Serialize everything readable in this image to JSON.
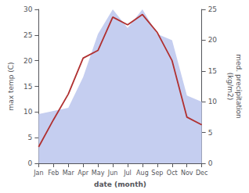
{
  "chart_data": {
    "type": "line",
    "categories": [
      "Jan",
      "Feb",
      "Mar",
      "Apr",
      "May",
      "Jun",
      "Jul",
      "Aug",
      "Sep",
      "Oct",
      "Nov",
      "Dec"
    ],
    "xlabel": "date (month)",
    "ylabel": "max temp (C)",
    "y2label": "med. precipitation\n(kg/m2)",
    "ylim": [
      0,
      30
    ],
    "yticks": [
      0,
      5,
      10,
      15,
      20,
      25,
      30
    ],
    "y2lim": [
      0,
      25
    ],
    "y2ticks": [
      0,
      5,
      10,
      15,
      20,
      25
    ],
    "grid": false,
    "series": [
      {
        "type": "area",
        "color": "#c5cef0",
        "axis": "y2",
        "values": [
          8.0,
          8.5,
          9.0,
          14.0,
          21.0,
          25.0,
          22.0,
          25.0,
          21.0,
          20.0,
          11.0,
          10.0
        ]
      },
      {
        "type": "line",
        "color": "#b03030",
        "values": [
          3.2,
          8.5,
          13.5,
          20.5,
          22.0,
          28.5,
          27.0,
          29.0,
          25.5,
          20.0,
          9.0,
          7.5
        ]
      }
    ]
  }
}
